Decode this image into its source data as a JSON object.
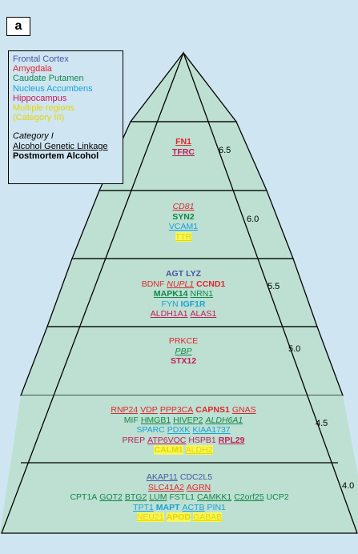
{
  "panel_label": "a",
  "colors": {
    "frontal_cortex": "#4b55a6",
    "amygdala": "#e0262d",
    "caudate_putamen": "#12864a",
    "nucleus_accumbens": "#1aa1d6",
    "hippocampus": "#c41a5a",
    "multiple": "#e6d500",
    "black": "#000000"
  },
  "legend": {
    "frontal_cortex": "Frontal Cortex",
    "amygdala": "Amygdala",
    "caudate_putamen": "Caudate Putamen",
    "nucleus_accumbens": "Nucleus Accumbens",
    "hippocampus": "Hippocampus",
    "multiple_1": "Multiple regions",
    "multiple_2": "(Category III)",
    "category_i": "Category I",
    "linkage": "Alcohol Genetic Linkage",
    "postmortem": "Postmortem Alcohol"
  },
  "scores": [
    "6.5",
    "6.0",
    "5.5",
    "5.0",
    "4.5",
    "4.0"
  ],
  "tiers": [
    [
      [
        {
          "t": "FN1",
          "c": "amygdala",
          "u": true,
          "b": true
        }
      ],
      [
        {
          "t": "TFRC",
          "c": "hippocampus",
          "u": true,
          "b": true
        }
      ]
    ],
    [
      [
        {
          "t": "CD81",
          "c": "amygdala",
          "u": true,
          "i": true
        }
      ],
      [
        {
          "t": "SYN2",
          "c": "caudate_putamen",
          "b": true
        }
      ],
      [
        {
          "t": "VCAM1",
          "c": "nucleus_accumbens",
          "u": true
        }
      ],
      [
        {
          "t": "TTR",
          "c": "multiple",
          "u": true
        }
      ]
    ],
    [
      [
        {
          "t": "AGT",
          "c": "frontal_cortex",
          "b": true
        },
        {
          "t": "LYZ",
          "c": "frontal_cortex",
          "b": true
        }
      ],
      [
        {
          "t": "BDNF",
          "c": "amygdala"
        },
        {
          "t": "NUPL1",
          "c": "amygdala",
          "u": true,
          "i": true
        },
        {
          "t": "CCND1",
          "c": "amygdala",
          "b": true
        }
      ],
      [
        {
          "t": "MAPK14",
          "c": "caudate_putamen",
          "u": true,
          "b": true
        },
        {
          "t": "NRN1",
          "c": "caudate_putamen",
          "u": true
        }
      ],
      [
        {
          "t": "FYN",
          "c": "nucleus_accumbens"
        },
        {
          "t": "IGF1R",
          "c": "nucleus_accumbens",
          "b": true
        }
      ],
      [
        {
          "t": "ALDH1A1",
          "c": "hippocampus",
          "u": true
        },
        {
          "t": "ALAS1",
          "c": "hippocampus",
          "u": true
        }
      ]
    ],
    [
      [
        {
          "t": "PRKCE",
          "c": "amygdala"
        }
      ],
      [
        {
          "t": "PBP",
          "c": "caudate_putamen",
          "u": true,
          "i": true
        }
      ],
      [
        {
          "t": "STX12",
          "c": "hippocampus",
          "b": true
        }
      ]
    ],
    [
      [
        {
          "t": "RNP24",
          "c": "amygdala",
          "u": true
        },
        {
          "t": "VDP",
          "c": "amygdala",
          "u": true
        },
        {
          "t": "PPP3CA",
          "c": "amygdala",
          "u": true
        },
        {
          "t": "CAPNS1",
          "c": "amygdala",
          "b": true
        },
        {
          "t": "GNAS",
          "c": "amygdala",
          "u": true
        }
      ],
      [
        {
          "t": "MIF",
          "c": "caudate_putamen"
        },
        {
          "t": "HMGB1",
          "c": "caudate_putamen",
          "u": true
        },
        {
          "t": "HIVEP2",
          "c": "caudate_putamen",
          "u": true
        },
        {
          "t": "ALDH6A1",
          "c": "caudate_putamen",
          "u": true,
          "i": true
        }
      ],
      [
        {
          "t": "SPARC",
          "c": "nucleus_accumbens"
        },
        {
          "t": "PDXK",
          "c": "nucleus_accumbens",
          "u": true
        },
        {
          "t": "KIAA1737",
          "c": "nucleus_accumbens",
          "u": true
        }
      ],
      [
        {
          "t": "PREP",
          "c": "hippocampus"
        },
        {
          "t": "ATP6VOC",
          "c": "hippocampus",
          "u": true
        },
        {
          "t": "HSPB1",
          "c": "hippocampus"
        },
        {
          "t": "RPL29",
          "c": "hippocampus",
          "u": true,
          "b": true
        }
      ],
      [
        {
          "t": "CALM1",
          "c": "multiple",
          "b": true
        },
        {
          "t": "ALDH2",
          "c": "multiple",
          "u": true
        }
      ]
    ],
    [
      [
        {
          "t": "AKAP11",
          "c": "frontal_cortex",
          "u": true
        },
        {
          "t": "CDC2L5",
          "c": "frontal_cortex"
        }
      ],
      [
        {
          "t": "SLC41A2",
          "c": "amygdala",
          "u": true
        },
        {
          "t": "AGRN",
          "c": "amygdala",
          "u": true
        }
      ],
      [
        {
          "t": "CPT1A",
          "c": "caudate_putamen"
        },
        {
          "t": "GOT2",
          "c": "caudate_putamen",
          "u": true
        },
        {
          "t": "BTG2",
          "c": "caudate_putamen",
          "u": true
        },
        {
          "t": "LUM",
          "c": "caudate_putamen",
          "u": true
        },
        {
          "t": "FSTL1",
          "c": "caudate_putamen"
        },
        {
          "t": "CAMKK1",
          "c": "caudate_putamen",
          "u": true
        },
        {
          "t": "C2orf25",
          "c": "caudate_putamen",
          "u": true
        },
        {
          "t": "UCP2",
          "c": "caudate_putamen"
        }
      ],
      [
        {
          "t": "TPT1",
          "c": "nucleus_accumbens",
          "u": true
        },
        {
          "t": "MAPT",
          "c": "nucleus_accumbens",
          "b": true
        },
        {
          "t": "ACTB",
          "c": "nucleus_accumbens",
          "u": true
        },
        {
          "t": "PIN1",
          "c": "nucleus_accumbens"
        }
      ],
      [
        {
          "t": "NEU21",
          "c": "multiple",
          "u": true
        },
        {
          "t": "APOD",
          "c": "multiple",
          "b": true
        },
        {
          "t": "GABAB",
          "c": "multiple",
          "u": true
        }
      ]
    ]
  ]
}
